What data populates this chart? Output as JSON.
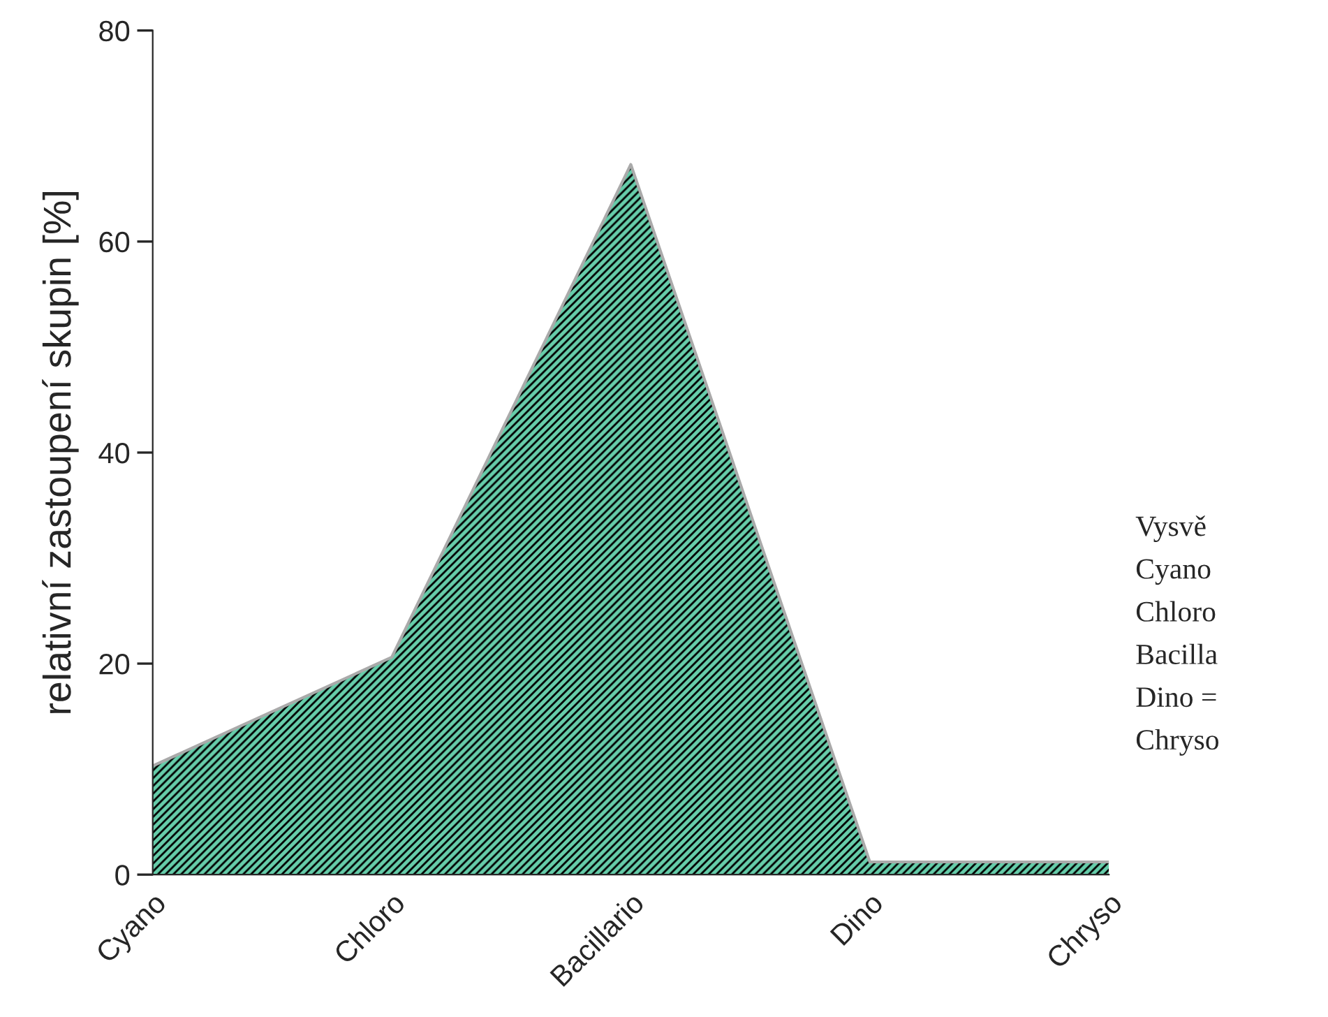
{
  "chart_data": {
    "type": "area",
    "ylabel": "relativní zastoupení skupin [%]",
    "categories": [
      "Cyano",
      "Chloro",
      "Bacillario",
      "Dino",
      "Chryso"
    ],
    "series": [
      {
        "color": "#66cdaa",
        "values": [
          10.3,
          20.6,
          67.3,
          1.2,
          1.2
        ]
      }
    ],
    "ylim": [
      0,
      80
    ],
    "yticks": [
      0,
      20,
      40,
      60,
      80
    ],
    "grid": false,
    "annotations": [
      "Vysvě",
      "Cyano",
      "Chloro",
      "Bacilla",
      "Dino =",
      "Chryso"
    ]
  }
}
